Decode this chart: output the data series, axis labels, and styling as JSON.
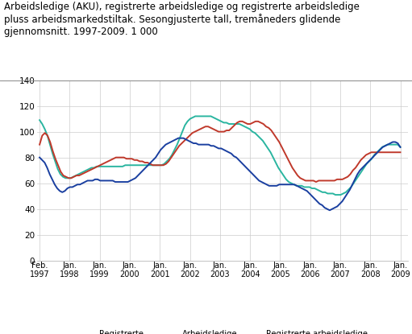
{
  "title_line1": "Arbeidsledige (AKU), registrerte arbeidsledige og registrerte arbeidsledige",
  "title_line2": "pluss arbeidsmarkedstiltak. Sesongjusterte tall, tremåneders glidende",
  "title_line3": "gjennomsnitt. 1997-2009. 1 000",
  "title_fontsize": 8.5,
  "ylim": [
    0,
    140
  ],
  "yticks": [
    0,
    20,
    40,
    60,
    80,
    100,
    120,
    140
  ],
  "line_colors": {
    "registered": "#1a3fa0",
    "aku": "#c0392b",
    "registered_tiltak": "#2ab5a0"
  },
  "line_widths": {
    "registered": 1.4,
    "aku": 1.4,
    "registered_tiltak": 1.4
  },
  "legend": [
    {
      "label": "Registrerte\narbeidsledige",
      "color": "#1a3fa0"
    },
    {
      "label": "Arbeidsledige\n(AKU)",
      "color": "#c0392b"
    },
    {
      "label": "Registrerte arbeidsledige\n+ tiltak",
      "color": "#2ab5a0"
    }
  ],
  "xtick_labels": [
    "Feb.\n1997",
    "Jan.\n1998",
    "Jan.\n1999",
    "Jan.\n2000",
    "Jan.\n2001",
    "Jan.\n2002",
    "Jan.\n2003",
    "Jan.\n2004",
    "Jan.\n2005",
    "Jan.\n2006",
    "Jan.\n2007",
    "Jan.\n2008",
    "Jan.\n2009"
  ],
  "registered": [
    80,
    78,
    76,
    72,
    67,
    63,
    59,
    56,
    54,
    53,
    54,
    56,
    57,
    57,
    58,
    59,
    59,
    60,
    61,
    62,
    62,
    62,
    63,
    63,
    62,
    62,
    62,
    62,
    62,
    62,
    61,
    61,
    61,
    61,
    61,
    61,
    62,
    63,
    64,
    66,
    68,
    70,
    72,
    74,
    76,
    78,
    80,
    83,
    86,
    88,
    90,
    91,
    92,
    93,
    94,
    95,
    95,
    95,
    94,
    93,
    92,
    91,
    91,
    90,
    90,
    90,
    90,
    90,
    89,
    89,
    88,
    87,
    87,
    86,
    85,
    84,
    83,
    81,
    80,
    78,
    76,
    74,
    72,
    70,
    68,
    66,
    64,
    62,
    61,
    60,
    59,
    58,
    58,
    58,
    58,
    59,
    59,
    59,
    59,
    59,
    59,
    59,
    58,
    57,
    56,
    55,
    54,
    52,
    50,
    48,
    46,
    44,
    43,
    41,
    40,
    39,
    40,
    41,
    42,
    44,
    46,
    49,
    52,
    55,
    59,
    63,
    67,
    70,
    72,
    74,
    76,
    78,
    80,
    82,
    84,
    86,
    88,
    89,
    90,
    91,
    92,
    92,
    91,
    88
  ],
  "aku": [
    90,
    97,
    99,
    97,
    92,
    85,
    79,
    74,
    69,
    66,
    65,
    64,
    64,
    65,
    66,
    66,
    67,
    68,
    69,
    70,
    71,
    72,
    73,
    74,
    75,
    76,
    77,
    78,
    79,
    80,
    80,
    80,
    80,
    79,
    79,
    79,
    78,
    78,
    77,
    77,
    76,
    76,
    75,
    74,
    74,
    74,
    74,
    74,
    75,
    77,
    80,
    83,
    86,
    89,
    91,
    93,
    95,
    97,
    99,
    100,
    101,
    102,
    103,
    104,
    104,
    103,
    102,
    101,
    100,
    100,
    100,
    101,
    101,
    103,
    105,
    107,
    108,
    108,
    107,
    106,
    106,
    107,
    108,
    108,
    107,
    106,
    104,
    103,
    101,
    98,
    95,
    92,
    88,
    84,
    80,
    76,
    72,
    69,
    66,
    64,
    63,
    62,
    62,
    62,
    62,
    61,
    62,
    62,
    62,
    62,
    62,
    62,
    62,
    63,
    63,
    63,
    64,
    65,
    67,
    70,
    72,
    75,
    78,
    80,
    82,
    83,
    84,
    84,
    84,
    84,
    84,
    84,
    84,
    84,
    84,
    84,
    84,
    84
  ],
  "registered_tiltak": [
    109,
    106,
    102,
    97,
    90,
    83,
    77,
    71,
    67,
    65,
    64,
    64,
    64,
    65,
    66,
    67,
    68,
    69,
    70,
    71,
    72,
    72,
    73,
    73,
    73,
    73,
    73,
    73,
    73,
    73,
    73,
    73,
    73,
    74,
    74,
    74,
    74,
    74,
    74,
    74,
    74,
    74,
    74,
    74,
    74,
    74,
    74,
    74,
    75,
    77,
    79,
    82,
    86,
    90,
    95,
    100,
    105,
    108,
    110,
    111,
    112,
    112,
    112,
    112,
    112,
    112,
    112,
    111,
    110,
    109,
    108,
    107,
    107,
    106,
    106,
    106,
    106,
    106,
    105,
    104,
    103,
    102,
    100,
    99,
    97,
    95,
    93,
    90,
    87,
    84,
    80,
    76,
    72,
    69,
    66,
    63,
    61,
    60,
    59,
    58,
    58,
    58,
    57,
    57,
    57,
    56,
    56,
    55,
    54,
    53,
    53,
    52,
    52,
    52,
    51,
    51,
    51,
    52,
    53,
    55,
    57,
    60,
    63,
    66,
    69,
    72,
    75,
    77,
    79,
    82,
    84,
    86,
    88,
    89,
    90,
    90,
    90,
    90,
    90,
    88
  ],
  "background_color": "#ffffff",
  "grid_color": "#cccccc"
}
